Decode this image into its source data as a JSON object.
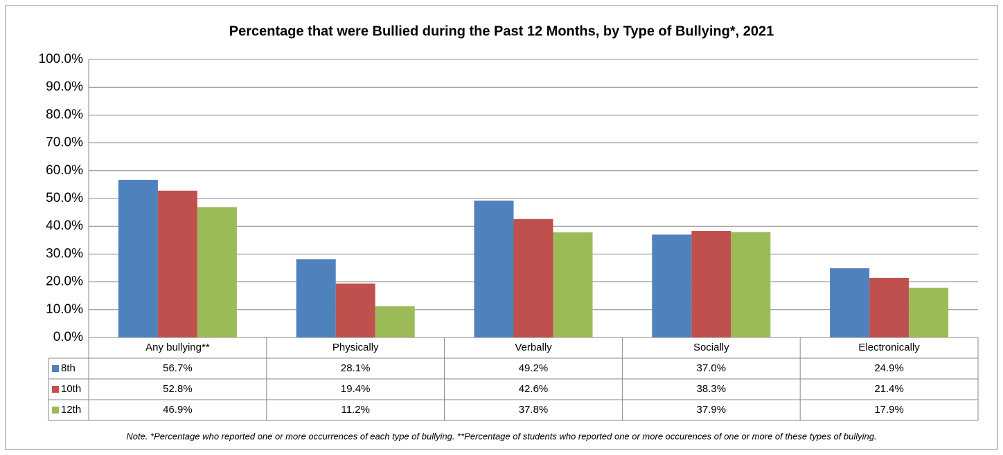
{
  "chart_data": {
    "type": "bar",
    "title": "Percentage that were Bullied during the Past 12 Months, by Type of Bullying*, 2021",
    "categories": [
      "Any bullying**",
      "Physically",
      "Verbally",
      "Socially",
      "Electronically"
    ],
    "series": [
      {
        "name": "8th",
        "color": "#4f81bd",
        "values": [
          56.7,
          28.1,
          49.2,
          37.0,
          24.9
        ],
        "value_labels": [
          "56.7%",
          "28.1%",
          "49.2%",
          "37.0%",
          "24.9%"
        ]
      },
      {
        "name": "10th",
        "color": "#c0504d",
        "values": [
          52.8,
          19.4,
          42.6,
          38.3,
          21.4
        ],
        "value_labels": [
          "52.8%",
          "19.4%",
          "42.6%",
          "38.3%",
          "21.4%"
        ]
      },
      {
        "name": "12th",
        "color": "#9bbb59",
        "values": [
          46.9,
          11.2,
          37.8,
          37.9,
          17.9
        ],
        "value_labels": [
          "46.9%",
          "11.2%",
          "37.8%",
          "37.9%",
          "17.9%"
        ]
      }
    ],
    "ylim": [
      0,
      100
    ],
    "yticks": [
      {
        "value": 0,
        "label": "0.0%"
      },
      {
        "value": 10,
        "label": "10.0%"
      },
      {
        "value": 20,
        "label": "20.0%"
      },
      {
        "value": 30,
        "label": "30.0%"
      },
      {
        "value": 40,
        "label": "40.0%"
      },
      {
        "value": 50,
        "label": "50.0%"
      },
      {
        "value": 60,
        "label": "60.0%"
      },
      {
        "value": 70,
        "label": "70.0%"
      },
      {
        "value": 80,
        "label": "80.0%"
      },
      {
        "value": 90,
        "label": "90.0%"
      },
      {
        "value": 100,
        "label": "100.0%"
      }
    ],
    "grid": true,
    "note": "Note. *Percentage who reported one or more occurrences of each type of bullying. **Percentage of students who reported one or more occurences of one or more of these types of bullying."
  }
}
